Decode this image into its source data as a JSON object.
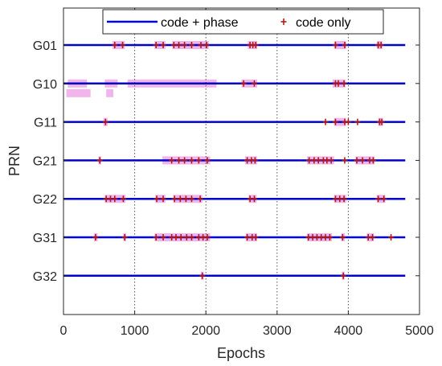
{
  "colors": {
    "code_phase": "#0000cc",
    "code_only": "#b21a1a",
    "highlight": "#f0a8e8",
    "axis": "#262626",
    "grid": "#555555"
  },
  "chart_data": {
    "type": "scatter",
    "xlabel": "Epochs",
    "ylabel": "PRN",
    "xlim": [
      0,
      5000
    ],
    "xticks": [
      0,
      1000,
      2000,
      3000,
      4000,
      5000
    ],
    "x_grid_dotted": [
      1000,
      2000,
      3000,
      4000
    ],
    "categories": [
      "G01",
      "G10",
      "G11",
      "G21",
      "G22",
      "G31",
      "G32"
    ],
    "legend": {
      "placement": "top",
      "entries": [
        "code + phase",
        "code only"
      ]
    },
    "series": [
      {
        "name": "code + phase",
        "style": "line",
        "lines": [
          {
            "prn": "G01",
            "x_start": 0,
            "x_end": 4800
          },
          {
            "prn": "G10",
            "x_start": 0,
            "x_end": 4800
          },
          {
            "prn": "G11",
            "x_start": 0,
            "x_end": 4800
          },
          {
            "prn": "G21",
            "x_start": 0,
            "x_end": 4800
          },
          {
            "prn": "G22",
            "x_start": 0,
            "x_end": 4800
          },
          {
            "prn": "G31",
            "x_start": 0,
            "x_end": 4800
          },
          {
            "prn": "G32",
            "x_start": 0,
            "x_end": 4800
          }
        ]
      },
      {
        "name": "code only",
        "style": "marker",
        "points": [
          {
            "prn": "G01",
            "x": [
              720,
              830,
              1300,
              1400,
              1550,
              1620,
              1700,
              1800,
              1930,
              2010,
              2620,
              2660,
              2700,
              3820,
              3950,
              4420,
              4460
            ]
          },
          {
            "prn": "G10",
            "x": [
              2530,
              2680,
              3820,
              3860,
              3940
            ]
          },
          {
            "prn": "G11",
            "x": [
              590,
              3680,
              3820,
              3950,
              4000,
              4130,
              4440,
              4470
            ]
          },
          {
            "prn": "G21",
            "x": [
              510,
              1520,
              1620,
              1700,
              1800,
              1900,
              2020,
              2580,
              2640,
              2690,
              3450,
              3520,
              3580,
              3650,
              3700,
              3760,
              3950,
              4120,
              4200,
              4300,
              4350
            ]
          },
          {
            "prn": "G22",
            "x": [
              600,
              660,
              720,
              840,
              1310,
              1400,
              1560,
              1640,
              1720,
              1800,
              1920,
              2620,
              2680,
              3820,
              3880,
              3940,
              4420,
              4500
            ]
          },
          {
            "prn": "G31",
            "x": [
              450,
              860,
              1300,
              1400,
              1520,
              1580,
              1650,
              1730,
              1800,
              1900,
              1960,
              2020,
              2580,
              2650,
              2700,
              3440,
              3500,
              3560,
              3620,
              3680,
              3740,
              3920,
              4280,
              4340,
              4600
            ]
          },
          {
            "prn": "G32",
            "x": [
              1950,
              3930
            ]
          }
        ]
      }
    ],
    "highlights": [
      {
        "prn": "G01",
        "ranges": [
          [
            690,
            860
          ],
          [
            1280,
            1430
          ],
          [
            1530,
            2040
          ],
          [
            2590,
            2720
          ],
          [
            3800,
            3970
          ],
          [
            4400,
            4480
          ]
        ]
      },
      {
        "prn": "G10",
        "ranges": [
          [
            60,
            330
          ],
          [
            580,
            760
          ],
          [
            900,
            2150
          ],
          [
            2500,
            2720
          ],
          [
            3780,
            3960
          ]
        ]
      },
      {
        "prn": "G10b",
        "ranges": [
          [
            40,
            380
          ],
          [
            600,
            700
          ]
        ]
      },
      {
        "prn": "G11",
        "ranges": [
          [
            560,
            620
          ],
          [
            3800,
            3970
          ],
          [
            4420,
            4490
          ]
        ]
      },
      {
        "prn": "G21",
        "ranges": [
          [
            490,
            530
          ],
          [
            1390,
            2060
          ],
          [
            2550,
            2720
          ],
          [
            3420,
            3800
          ],
          [
            4100,
            4370
          ]
        ]
      },
      {
        "prn": "G22",
        "ranges": [
          [
            580,
            870
          ],
          [
            1290,
            1430
          ],
          [
            1540,
            1950
          ],
          [
            2600,
            2710
          ],
          [
            3800,
            3970
          ],
          [
            4400,
            4520
          ]
        ]
      },
      {
        "prn": "G31",
        "ranges": [
          [
            430,
            480
          ],
          [
            840,
            880
          ],
          [
            1280,
            2060
          ],
          [
            2560,
            2720
          ],
          [
            3420,
            3770
          ],
          [
            3900,
            3950
          ],
          [
            4260,
            4360
          ]
        ]
      },
      {
        "prn": "G32",
        "ranges": [
          [
            1930,
            1970
          ],
          [
            3910,
            3950
          ]
        ]
      }
    ]
  }
}
